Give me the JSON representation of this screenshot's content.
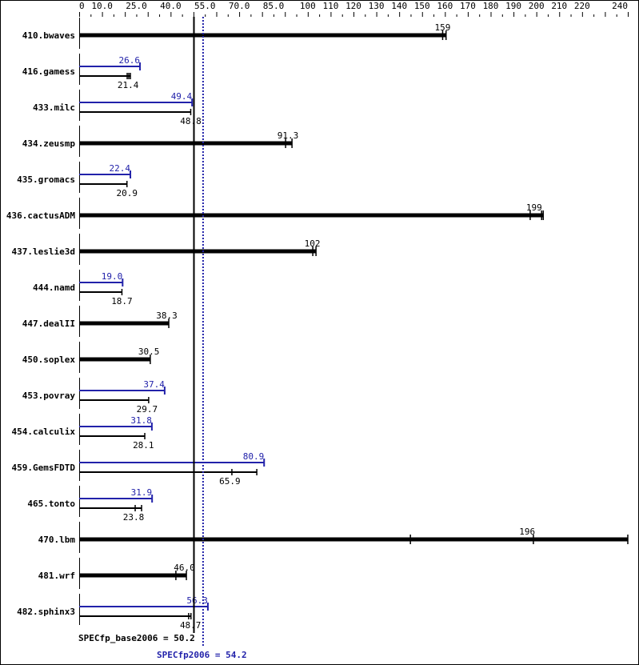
{
  "chart_data": {
    "type": "bar",
    "orientation": "horizontal",
    "xlim": [
      0,
      240
    ],
    "x_ticks": [
      "0",
      "10.0",
      "25.0",
      "40.0",
      "55.0",
      "70.0",
      "85.0",
      "100",
      "110",
      "120",
      "130",
      "140",
      "150",
      "160",
      "170",
      "180",
      "190",
      "200",
      "210",
      "220",
      "240"
    ],
    "x_tick_values": [
      0,
      10,
      25,
      40,
      55,
      70,
      85,
      100,
      110,
      120,
      130,
      140,
      150,
      160,
      170,
      180,
      190,
      200,
      210,
      220,
      240
    ],
    "colors": {
      "base": "#000000",
      "peak": "#2222aa"
    },
    "benchmarks": [
      {
        "name": "410.bwaves",
        "base": 159,
        "base_label": "159",
        "base_end": 160.5,
        "base_ticks": [
          159,
          160.5
        ]
      },
      {
        "name": "416.gamess",
        "base": 21.4,
        "base_label": "21.4",
        "base_end": 22.4,
        "base_ticks": [
          21.0,
          21.7,
          22.4
        ],
        "peak": 26.6,
        "peak_label": "26.6"
      },
      {
        "name": "433.milc",
        "base": 48.8,
        "base_label": "48.8",
        "base_end": 48.8,
        "base_ticks": [
          48.8
        ],
        "peak": 49.4,
        "peak_label": "49.4"
      },
      {
        "name": "434.zeusmp",
        "base": 91.3,
        "base_label": "91.3",
        "base_end": 93.1,
        "base_ticks": [
          90.3,
          93.1
        ]
      },
      {
        "name": "435.gromacs",
        "base": 20.9,
        "base_label": "20.9",
        "base_end": 20.9,
        "base_ticks": [
          20.9
        ],
        "peak": 22.4,
        "peak_label": "22.4"
      },
      {
        "name": "436.cactusADM",
        "base": 199,
        "base_label": "199",
        "base_end": 203,
        "base_ticks": [
          197.3,
          202.3,
          203
        ]
      },
      {
        "name": "437.leslie3d",
        "base": 102,
        "base_label": "102",
        "base_end": 103.6,
        "base_ticks": [
          102.2,
          103.6
        ]
      },
      {
        "name": "444.namd",
        "base": 18.7,
        "base_label": "18.7",
        "base_end": 18.7,
        "base_ticks": [
          18.7
        ],
        "peak": 19.0,
        "peak_label": "19.0"
      },
      {
        "name": "447.dealII",
        "base": 38.3,
        "base_label": "38.3",
        "base_end": 39.2,
        "base_ticks": [
          39.2
        ]
      },
      {
        "name": "450.soplex",
        "base": 30.5,
        "base_label": "30.5",
        "base_end": 31.1,
        "base_ticks": [
          31.1
        ]
      },
      {
        "name": "453.povray",
        "base": 29.7,
        "base_label": "29.7",
        "base_end": 30.4,
        "base_ticks": [
          30.4
        ],
        "peak": 37.4,
        "peak_label": "37.4"
      },
      {
        "name": "454.calculix",
        "base": 28.1,
        "base_label": "28.1",
        "base_end": 28.7,
        "base_ticks": [
          28.7
        ],
        "peak": 31.8,
        "peak_label": "31.8"
      },
      {
        "name": "459.GemsFDTD",
        "base": 65.9,
        "base_label": "65.9",
        "base_end": 77.7,
        "base_ticks": [
          66.8,
          77.7
        ],
        "peak": 80.9,
        "peak_label": "80.9"
      },
      {
        "name": "465.tonto",
        "base": 23.8,
        "base_label": "23.8",
        "base_end": 27.3,
        "base_ticks": [
          24.5,
          27.3
        ],
        "peak": 31.9,
        "peak_label": "31.9"
      },
      {
        "name": "470.lbm",
        "base": 196,
        "base_label": "196",
        "base_end": 240,
        "base_ticks": [
          144.9,
          198.7,
          240
        ]
      },
      {
        "name": "481.wrf",
        "base": 46.0,
        "base_label": "46.0",
        "base_end": 46.9,
        "base_ticks": [
          42.3,
          46.9
        ]
      },
      {
        "name": "482.sphinx3",
        "base": 48.7,
        "base_label": "48.7",
        "base_end": 48.9,
        "base_ticks": [
          47.9,
          48.9
        ],
        "peak": 56.3,
        "peak_label": "56.3"
      }
    ],
    "base_overall": {
      "value": 50.2,
      "label": "SPECfp_base2006 = 50.2"
    },
    "peak_overall": {
      "value": 54.2,
      "label": "SPECfp2006 = 54.2"
    }
  }
}
